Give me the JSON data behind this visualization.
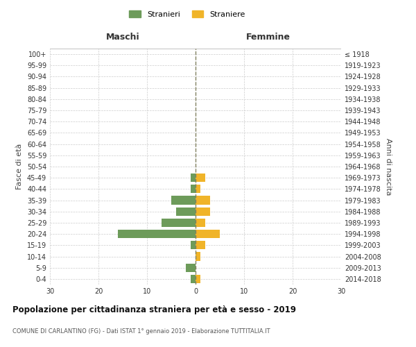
{
  "age_groups": [
    "0-4",
    "5-9",
    "10-14",
    "15-19",
    "20-24",
    "25-29",
    "30-34",
    "35-39",
    "40-44",
    "45-49",
    "50-54",
    "55-59",
    "60-64",
    "65-69",
    "70-74",
    "75-79",
    "80-84",
    "85-89",
    "90-94",
    "95-99",
    "100+"
  ],
  "birth_years": [
    "2014-2018",
    "2009-2013",
    "2004-2008",
    "1999-2003",
    "1994-1998",
    "1989-1993",
    "1984-1988",
    "1979-1983",
    "1974-1978",
    "1969-1973",
    "1964-1968",
    "1959-1963",
    "1954-1958",
    "1949-1953",
    "1944-1948",
    "1939-1943",
    "1934-1938",
    "1929-1933",
    "1924-1928",
    "1919-1923",
    "≤ 1918"
  ],
  "males": [
    1,
    2,
    0,
    1,
    16,
    7,
    4,
    5,
    1,
    1,
    0,
    0,
    0,
    0,
    0,
    0,
    0,
    0,
    0,
    0,
    0
  ],
  "females": [
    1,
    0,
    1,
    2,
    5,
    2,
    3,
    3,
    1,
    2,
    0,
    0,
    0,
    0,
    0,
    0,
    0,
    0,
    0,
    0,
    0
  ],
  "male_color": "#6d9b5a",
  "female_color": "#f0b429",
  "background_color": "#ffffff",
  "grid_color": "#cccccc",
  "dashed_line_color": "#808060",
  "xlim": 30,
  "title": "Popolazione per cittadinanza straniera per età e sesso - 2019",
  "subtitle": "COMUNE DI CARLANTINO (FG) - Dati ISTAT 1° gennaio 2019 - Elaborazione TUTTITALIA.IT",
  "xlabel_left": "Maschi",
  "xlabel_right": "Femmine",
  "ylabel_left": "Fasce di età",
  "ylabel_right": "Anni di nascita",
  "legend_male": "Stranieri",
  "legend_female": "Straniere"
}
